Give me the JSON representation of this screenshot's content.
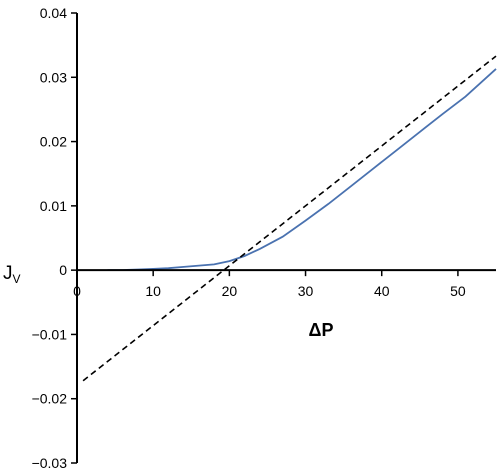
{
  "chart_data": {
    "type": "line",
    "xlabel": "ΔP",
    "ylabel": {
      "main": "J",
      "subscript": "V"
    },
    "xlim": [
      0,
      55
    ],
    "ylim": [
      -0.03,
      0.04
    ],
    "x_ticks": [
      0,
      10,
      20,
      30,
      40,
      50
    ],
    "x_tick_labels": [
      "0",
      "10",
      "20",
      "30",
      "40",
      "50"
    ],
    "y_ticks": [
      0.04,
      0.03,
      0.02,
      0.01,
      0,
      -0.01,
      -0.02,
      -0.03
    ],
    "y_tick_labels": [
      "0.04",
      "0.03",
      "0.02",
      "0.01",
      "0",
      "−0.01",
      "−0.02",
      "−0.03"
    ],
    "grid": false,
    "series": [
      {
        "style": "solid",
        "color": "#4a72b0",
        "x": [
          4,
          6,
          8,
          10,
          12,
          14,
          16,
          18,
          20,
          22,
          24,
          27,
          30,
          33,
          36,
          39,
          42,
          45,
          48,
          51,
          55
        ],
        "y": [
          0,
          0,
          0.0001,
          0.0002,
          0.0003,
          0.0005,
          0.0007,
          0.0009,
          0.0014,
          0.0022,
          0.0033,
          0.0052,
          0.0077,
          0.0103,
          0.0131,
          0.0159,
          0.0187,
          0.0215,
          0.0243,
          0.027,
          0.0313
        ]
      },
      {
        "style": "dashed",
        "color": "#000000",
        "x": [
          0.8,
          55
        ],
        "y": [
          -0.0172,
          0.0333
        ]
      }
    ]
  }
}
